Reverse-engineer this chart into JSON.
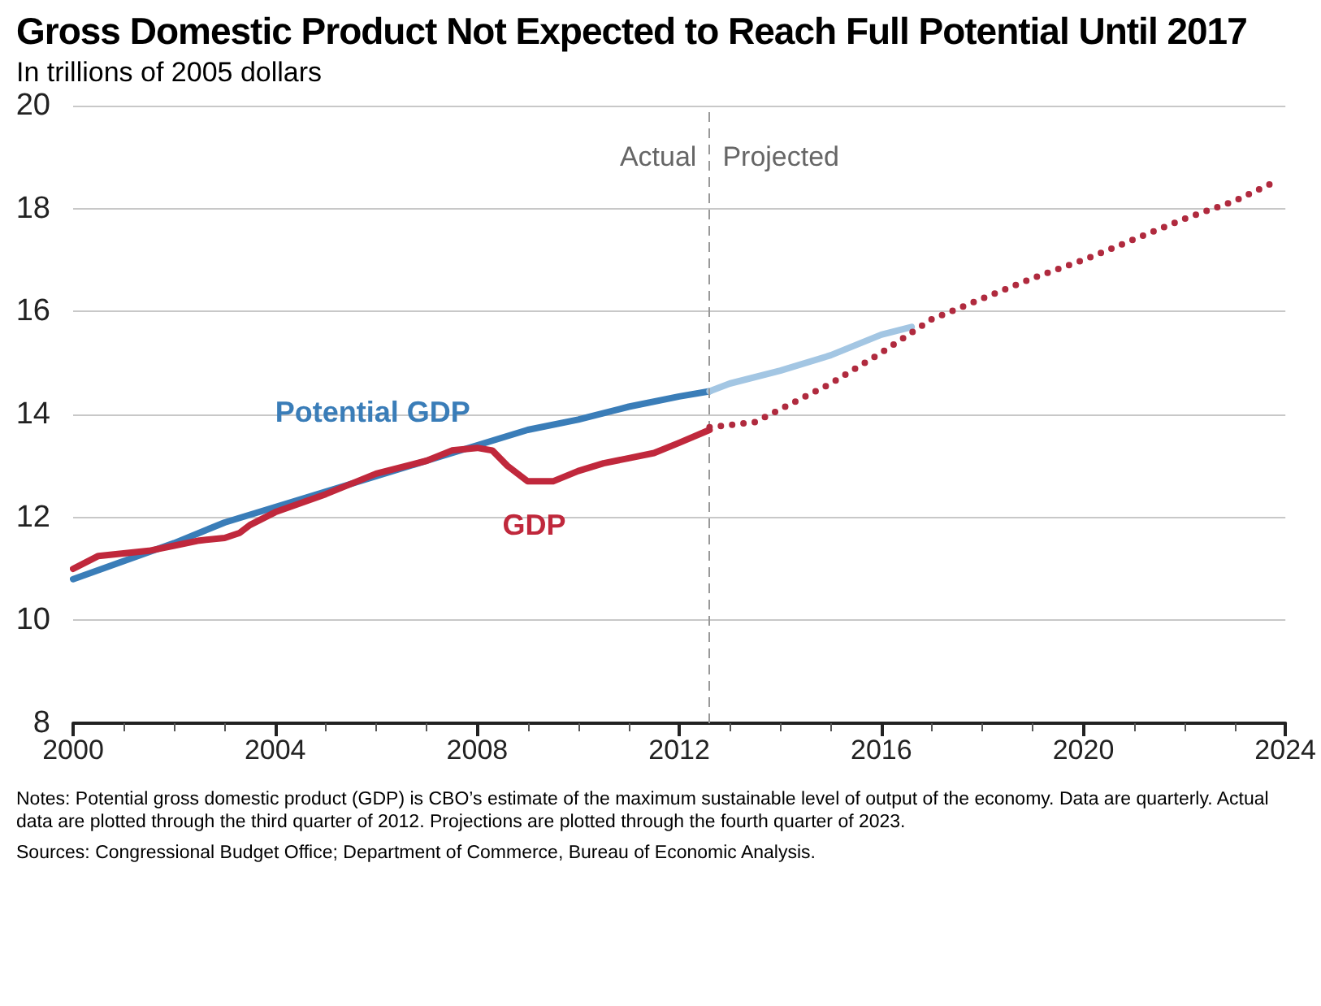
{
  "chart_data": {
    "type": "line",
    "title": "Gross Domestic Product Not Expected to Reach Full Potential Until 2017",
    "subtitle": "In trillions of 2005 dollars",
    "xlim": [
      2000,
      2024
    ],
    "xticks": [
      2000,
      2004,
      2008,
      2012,
      2016,
      2020,
      2024
    ],
    "ylim": [
      8,
      20
    ],
    "yticks": [
      8,
      10,
      12,
      14,
      16,
      18,
      20
    ],
    "grid": "y",
    "legend": false,
    "marker": "none",
    "series": [
      {
        "name": "Potential GDP",
        "color": "#3a7db8",
        "line_style": "solid",
        "x": [
          2000,
          2001,
          2002,
          2003,
          2004,
          2005,
          2006,
          2007,
          2008,
          2009,
          2010,
          2011,
          2012,
          2012.6
        ],
        "values": [
          10.8,
          11.15,
          11.5,
          11.9,
          12.2,
          12.5,
          12.8,
          13.1,
          13.4,
          13.7,
          13.9,
          14.15,
          14.35,
          14.45
        ]
      },
      {
        "color": "#a3c6e3",
        "line_style": "solid",
        "x": [
          2012.6,
          2013,
          2014,
          2015,
          2016,
          2016.6
        ],
        "values": [
          14.45,
          14.6,
          14.85,
          15.15,
          15.55,
          15.7
        ]
      },
      {
        "name": "GDP",
        "color": "#c0283c",
        "line_style": "solid",
        "x": [
          2000,
          2000.5,
          2001,
          2001.5,
          2002,
          2002.5,
          2003,
          2003.3,
          2003.5,
          2004,
          2005,
          2006,
          2007,
          2007.5,
          2008,
          2008.3,
          2008.6,
          2009,
          2009.5,
          2010,
          2010.5,
          2011,
          2011.5,
          2012,
          2012.6
        ],
        "values": [
          11.0,
          11.25,
          11.3,
          11.35,
          11.45,
          11.55,
          11.6,
          11.7,
          11.85,
          12.1,
          12.45,
          12.85,
          13.1,
          13.3,
          13.35,
          13.3,
          13.0,
          12.7,
          12.7,
          12.9,
          13.05,
          13.15,
          13.25,
          13.45,
          13.7
        ]
      },
      {
        "color": "#b02a3e",
        "line_style": "dotted",
        "x": [
          2012.6,
          2013.5,
          2014,
          2015,
          2016,
          2017,
          2018,
          2019,
          2020,
          2021,
          2022,
          2023,
          2023.75
        ],
        "values": [
          13.75,
          13.85,
          14.1,
          14.6,
          15.2,
          15.85,
          16.25,
          16.65,
          17.0,
          17.4,
          17.8,
          18.15,
          18.5
        ]
      }
    ],
    "ref_lines": [
      {
        "axis": "x",
        "value": 2012.6,
        "color": "#999999",
        "line_style": "dashed"
      }
    ],
    "annotations": [
      "Actual",
      "Projected",
      "Notes: Potential gross domestic product (GDP) is CBO’s estimate of the maximum sustainable level of output of the economy. Data are quarterly. Actual data are plotted through the third quarter of 2012. Projections are plotted through the fourth quarter of 2023.",
      "Sources: Congressional Budget Office; Department of Commerce, Bureau of Economic Analysis."
    ]
  }
}
